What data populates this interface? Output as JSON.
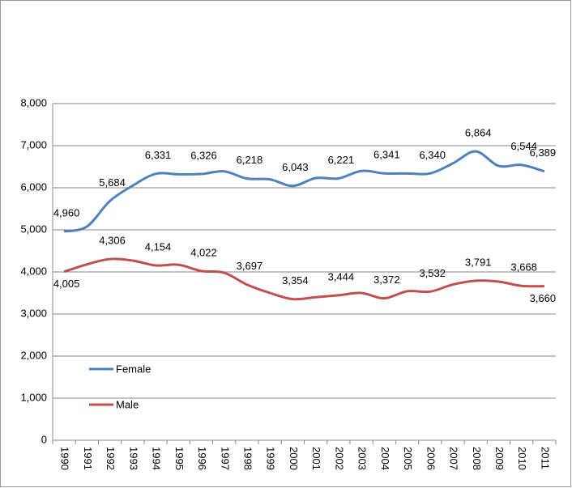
{
  "chart_data": {
    "type": "line",
    "categories": [
      "1990",
      "1991",
      "1992",
      "1993",
      "1994",
      "1995",
      "1996",
      "1997",
      "1998",
      "1999",
      "2000",
      "2001",
      "2002",
      "2003",
      "2004",
      "2005",
      "2006",
      "2007",
      "2008",
      "2009",
      "2010",
      "2011"
    ],
    "series": [
      {
        "name": "Female",
        "color": "#4f81bd",
        "values": [
          4960,
          5080,
          5684,
          6050,
          6331,
          6320,
          6326,
          6390,
          6218,
          6200,
          6043,
          6230,
          6221,
          6400,
          6341,
          6340,
          6340,
          6580,
          6864,
          6520,
          6544,
          6389
        ],
        "value_labels": [
          "4,960",
          null,
          "5,684",
          null,
          "6,331",
          null,
          "6,326",
          null,
          "6,218",
          null,
          "6,043",
          null,
          "6,221",
          null,
          "6,341",
          null,
          "6,340",
          null,
          "6,864",
          null,
          "6,544",
          "6,389"
        ]
      },
      {
        "name": "Male",
        "color": "#c0504d",
        "values": [
          4005,
          4180,
          4306,
          4270,
          4154,
          4170,
          4022,
          3980,
          3697,
          3500,
          3354,
          3400,
          3444,
          3500,
          3372,
          3540,
          3532,
          3700,
          3791,
          3770,
          3668,
          3660
        ],
        "value_labels": [
          "4,005",
          null,
          "4,306",
          null,
          "4,154",
          null,
          "4,022",
          null,
          "3,697",
          null,
          "3,354",
          null,
          "3,444",
          null,
          "3,372",
          null,
          "3,532",
          null,
          "3,791",
          null,
          "3,668",
          "3,660"
        ]
      }
    ],
    "ylim": [
      0,
      8000
    ],
    "yticks": [
      0,
      {
        "value": 1000,
        "label": "1,000"
      },
      {
        "value": 2000,
        "label": "2,000"
      },
      {
        "value": 3000,
        "label": "3,000"
      },
      {
        "value": 4000,
        "label": "4,000"
      },
      {
        "value": 5000,
        "label": "5,000"
      },
      {
        "value": 6000,
        "label": "6,000"
      },
      {
        "value": 7000,
        "label": "7,000"
      },
      {
        "value": 8000,
        "label": "8,000"
      }
    ],
    "grid": true,
    "legend": "left",
    "smooth": true
  }
}
